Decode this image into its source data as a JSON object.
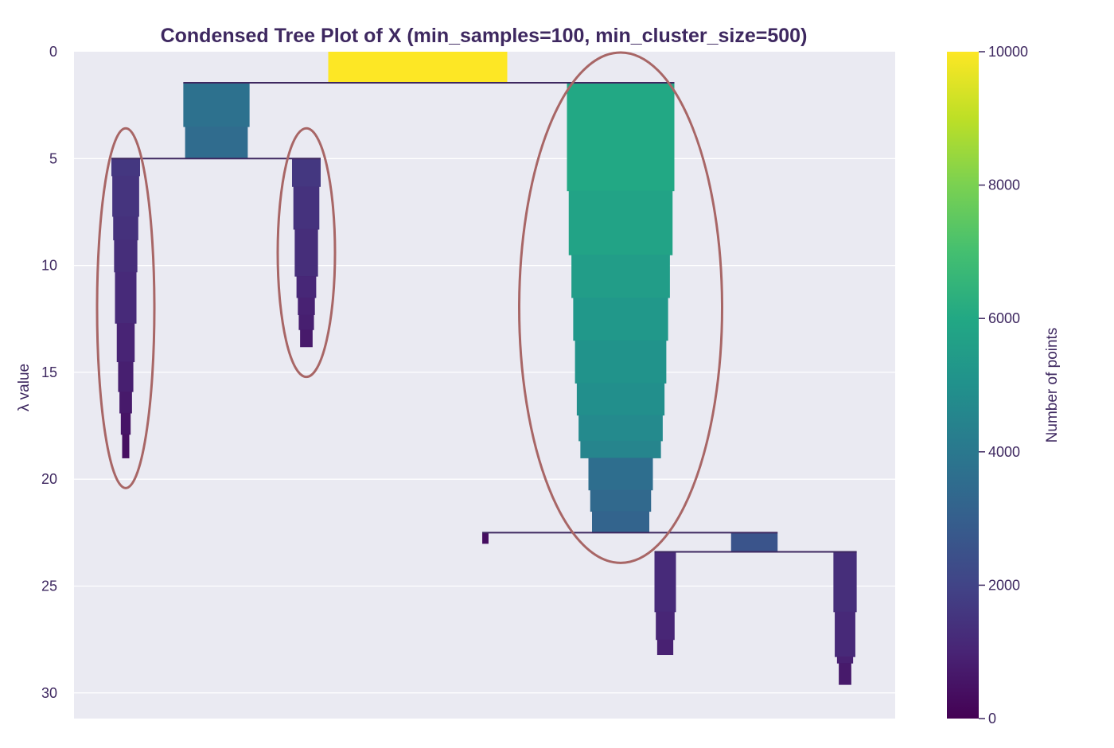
{
  "chart_data": {
    "type": "condensed-tree",
    "title": "Condensed Tree Plot of X (min_samples=100, min_cluster_size=500)",
    "ylabel": "λ value",
    "y_ticks": [
      "0",
      "5",
      "10",
      "15",
      "20",
      "25",
      "30"
    ],
    "y_tick_values": [
      0,
      5,
      10,
      15,
      20,
      25,
      30
    ],
    "ylim": [
      0,
      31.2
    ],
    "y_inverted": true,
    "grid": true,
    "colorbar": {
      "label": "Number of points",
      "ticks": [
        "0",
        "2000",
        "4000",
        "6000",
        "8000",
        "10000"
      ],
      "tick_values": [
        0,
        2000,
        4000,
        6000,
        8000,
        10000
      ],
      "range": [
        0,
        10000
      ],
      "colormap": "viridis"
    },
    "branches": [
      {
        "name": "root",
        "lambda_start": 0,
        "lambda_end": 1.45,
        "points": 10000,
        "steps": [
          [
            0,
            10000
          ]
        ]
      },
      {
        "name": "left",
        "lambda_start": 1.45,
        "lambda_end": 5.0,
        "points": 3700,
        "steps": [
          [
            1.45,
            3700
          ],
          [
            3.5,
            3500
          ]
        ]
      },
      {
        "name": "right",
        "lambda_start": 1.45,
        "lambda_end": 22.5,
        "points": 6000,
        "steps": [
          [
            1.45,
            6000
          ],
          [
            6.5,
            5800
          ],
          [
            9.5,
            5500
          ],
          [
            11.5,
            5300
          ],
          [
            13.5,
            5100
          ],
          [
            15.5,
            4900
          ],
          [
            17.0,
            4700
          ],
          [
            18.2,
            4500
          ],
          [
            19.0,
            3600
          ],
          [
            20.5,
            3400
          ],
          [
            21.5,
            3200
          ]
        ]
      },
      {
        "name": "left-left",
        "lambda_start": 5.0,
        "lambda_end": 19.0,
        "points": 1600,
        "selected": true,
        "steps": [
          [
            5.0,
            1600
          ],
          [
            5.8,
            1500
          ],
          [
            7.7,
            1400
          ],
          [
            8.8,
            1300
          ],
          [
            10.3,
            1200
          ],
          [
            12.7,
            1000
          ],
          [
            14.5,
            850
          ],
          [
            15.9,
            700
          ],
          [
            16.9,
            550
          ],
          [
            17.9,
            400
          ]
        ]
      },
      {
        "name": "left-right",
        "lambda_start": 5.0,
        "lambda_end": 13.8,
        "points": 1600,
        "selected": true,
        "steps": [
          [
            5.0,
            1600
          ],
          [
            6.3,
            1450
          ],
          [
            8.3,
            1300
          ],
          [
            10.5,
            1100
          ],
          [
            11.5,
            950
          ],
          [
            12.3,
            850
          ],
          [
            13.0,
            700
          ]
        ]
      },
      {
        "name": "right-small-left",
        "lambda_start": 22.5,
        "lambda_end": 23.0,
        "points": 350,
        "steps": [
          [
            22.5,
            350
          ]
        ]
      },
      {
        "name": "right-right",
        "lambda_start": 22.5,
        "lambda_end": 23.4,
        "points": 2600,
        "steps": [
          [
            22.5,
            2600
          ]
        ]
      },
      {
        "name": "right-right-left",
        "lambda_start": 23.4,
        "lambda_end": 28.2,
        "points": 1200,
        "steps": [
          [
            23.4,
            1200
          ],
          [
            26.2,
            1050
          ],
          [
            27.5,
            900
          ]
        ]
      },
      {
        "name": "right-right-right",
        "lambda_start": 23.4,
        "lambda_end": 29.6,
        "points": 1300,
        "steps": [
          [
            23.4,
            1300
          ],
          [
            26.2,
            1150
          ],
          [
            28.3,
            900
          ],
          [
            28.6,
            700
          ]
        ]
      }
    ],
    "highlight_ellipses": [
      "left-left",
      "left-right",
      "right"
    ]
  }
}
